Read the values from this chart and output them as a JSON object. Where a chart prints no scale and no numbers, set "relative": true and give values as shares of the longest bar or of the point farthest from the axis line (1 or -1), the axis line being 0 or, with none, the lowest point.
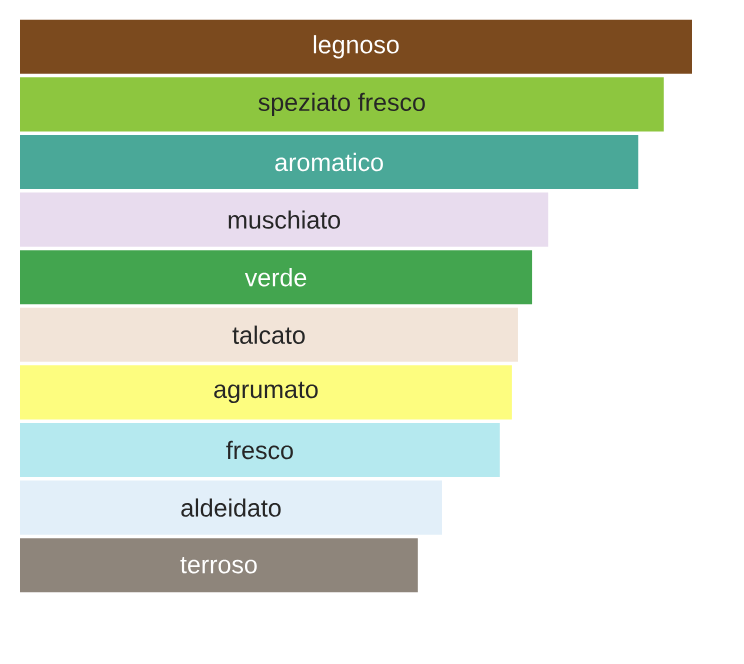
{
  "chart_data": {
    "type": "bar",
    "orientation": "horizontal",
    "relative": true,
    "categories": [
      "legnoso",
      "speziato fresco",
      "aromatico",
      "muschiato",
      "verde",
      "talcato",
      "agrumato",
      "fresco",
      "aldeidato",
      "terroso"
    ],
    "values": [
      1,
      0.958,
      0.92,
      0.786,
      0.762,
      0.741,
      0.732,
      0.714,
      0.628,
      0.592
    ],
    "colors": [
      "#7b4a1e",
      "#8dc63f",
      "#4aa898",
      "#e8dcee",
      "#43a54f",
      "#f2e4d8",
      "#fdfd7f",
      "#b5e9ef",
      "#e2eff9",
      "#8e857b"
    ]
  }
}
